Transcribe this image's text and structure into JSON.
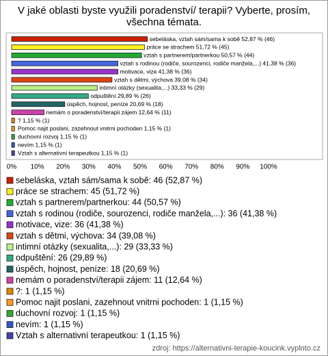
{
  "chart_data": {
    "type": "bar",
    "orientation": "horizontal",
    "title": "V jaké oblasti byste využili poradenství/ terapii? Vyberte, prosím, všechna témata.",
    "values": [
      52.87,
      51.72,
      50.57,
      41.38,
      41.38,
      39.08,
      33.33,
      29.89,
      20.69,
      12.64,
      1.15,
      1.15,
      1.15,
      1.15,
      1.15
    ],
    "value_labels": [
      "sebeláska, vztah sám/sama k sobě 52,87 % (46)",
      "práce se strachem 51,72 % (45)",
      "vztah s partnerem/partnerkou 50,57 % (44)",
      "vztah s rodinou (rodiče, sourozenci, rodiče manžela,...) 41,38 % (36)",
      "motivace, vize 41,38 % (36)",
      "vztah s dětmi, výchova 39,08 % (34)",
      "intimní otázky (sexualita,...) 33,33 % (29)",
      "odpuštění 29,89 % (26)",
      "úspěch, hojnost, peníze 20,69 % (18)",
      "nemám o poradenství/terapii zájem 12,64 % (11)",
      "? 1,15 % (1)",
      "Pomoc najit poslani, zazehnout vnitrni pochoden 1,15 % (1)",
      "duchovní rozvoj 1,15 % (1)",
      "nevím 1,15 % (1)",
      "Vztah s alternativní terapeutkou 1,15 % (1)"
    ],
    "legend_labels": [
      "sebeláska, vztah sám/sama k sobě: 46 (52,87 %)",
      "práce se strachem: 45 (51,72 %)",
      "vztah s partnerem/partnerkou: 44 (50,57 %)",
      "vztah s rodinou (rodiče, sourozenci, rodiče manžela,...): 36 (41,38 %)",
      "motivace, vize: 36 (41,38 %)",
      "vztah s dětmi, výchova: 34 (39,08 %)",
      "intimní otázky (sexualita,...): 29 (33,33 %)",
      "odpuštění: 26 (29,89 %)",
      "úspěch, hojnost, peníze: 18 (20,69 %)",
      "nemám o poradenství/terapii zájem: 11 (12,64 %)",
      "?: 1 (1,15 %)",
      "Pomoc najit poslani, zazehnout vnitrni pochoden: 1 (1,15 %)",
      "duchovní rozvoj: 1 (1,15 %)",
      "nevím: 1 (1,15 %)",
      "Vztah s alternativní terapeutkou: 1 (1,15 %)"
    ],
    "colors": [
      "#cc1f00",
      "#ffee22",
      "#22aa33",
      "#4466dd",
      "#9933cc",
      "#dd4411",
      "#bbee88",
      "#33aa88",
      "#226666",
      "#cc44aa",
      "#dd8800",
      "#ff9922",
      "#33aa33",
      "#3355cc",
      "#4444aa"
    ],
    "xlim": [
      0,
      100
    ],
    "xticks": [
      {
        "value": 0,
        "label": "0%"
      },
      {
        "value": 10,
        "label": "10%"
      },
      {
        "value": 20,
        "label": "20%"
      },
      {
        "value": 30,
        "label": "30%"
      },
      {
        "value": 40,
        "label": "40%"
      },
      {
        "value": 50,
        "label": "50%"
      },
      {
        "value": 60,
        "label": "60%"
      },
      {
        "value": 70,
        "label": "70%"
      },
      {
        "value": 80,
        "label": "80%"
      },
      {
        "value": 90,
        "label": "90%"
      },
      {
        "value": 100,
        "label": "100%"
      }
    ],
    "source": "zdroj: https://alternativni-terapie-koucink.vyplnto.cz"
  }
}
